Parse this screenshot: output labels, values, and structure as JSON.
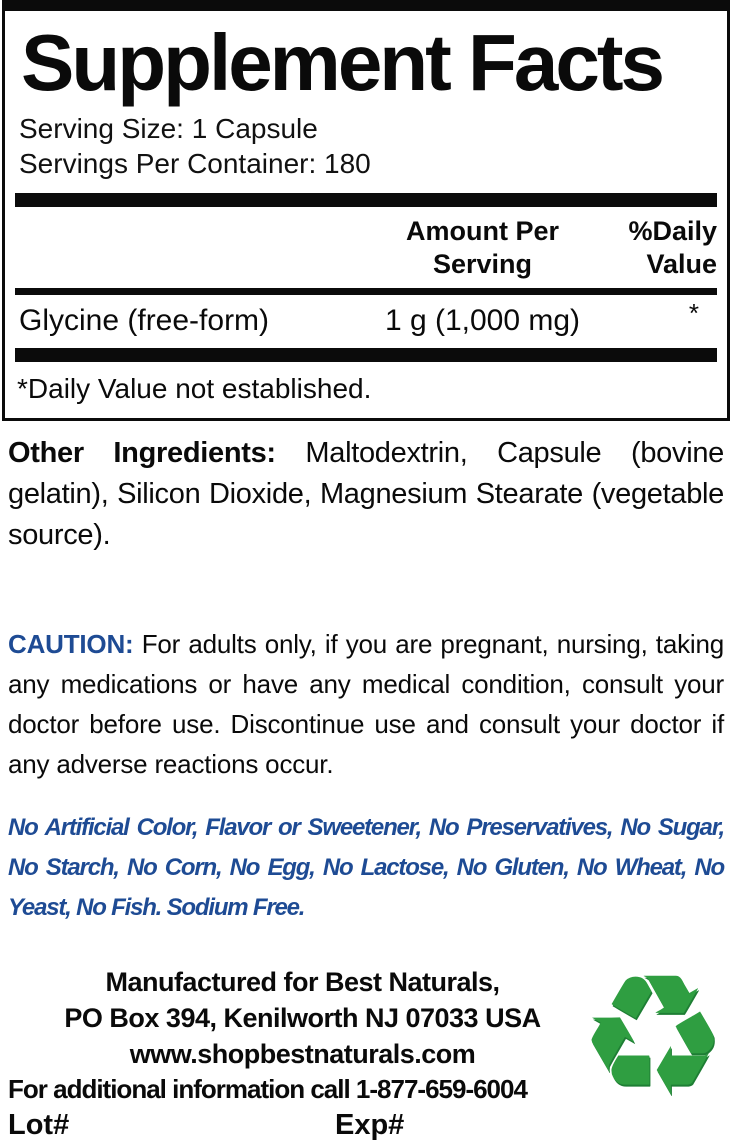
{
  "colors": {
    "text": "#0a0a0a",
    "accent_blue": "#1e4b94",
    "recycle_green": "#2f9e41"
  },
  "facts": {
    "title": "Supplement Facts",
    "serving_size": "Serving Size: 1 Capsule",
    "servings_per_container": "Servings Per Container: 180",
    "col_amount": "Amount Per Serving",
    "col_dv": "%Daily Value",
    "rows": [
      {
        "name": "Glycine (free-form)",
        "amount": "1 g (1,000 mg)",
        "dv": "*"
      }
    ],
    "footnote": "*Daily Value not established."
  },
  "other_ingredients": {
    "label": "Other Ingredients:",
    "text": "Maltodextrin, Capsule (bovine gelatin), Silicon Dioxide, Magnesium Stearate (vegetable source)."
  },
  "caution": {
    "label": "CAUTION:",
    "text": "For adults only, if you are pregnant, nursing, taking any medications or have any medical condition, consult your doctor before use. Discontinue use and consult your doctor if any adverse reactions occur."
  },
  "claims": "No Artificial Color, Flavor or Sweetener, No Preservatives, No Sugar, No Starch, No Corn, No Egg, No Lactose, No Gluten, No Wheat, No Yeast, No Fish. Sodium Free.",
  "footer": {
    "manufactured_line1": "Manufactured for Best Naturals,",
    "manufactured_line2": "PO Box 394, Kenilworth NJ 07033 USA",
    "website": "www.shopbestnaturals.com",
    "info_line": "For additional information call 1-877-659-6004",
    "lot_label": "Lot#",
    "exp_label": "Exp#",
    "recycle_glyph": "♻"
  }
}
